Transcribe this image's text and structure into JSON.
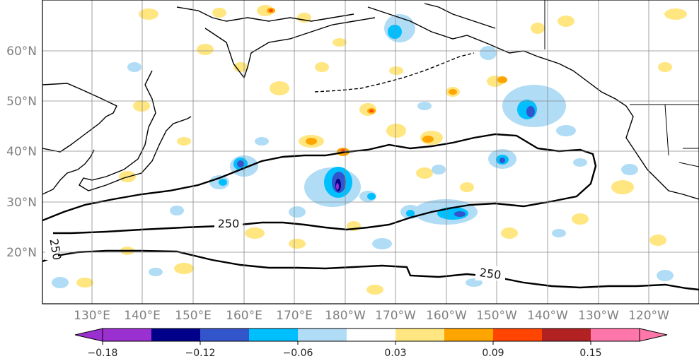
{
  "map": {
    "lon_ticks": [
      "130°E",
      "140°E",
      "150°E",
      "160°E",
      "170°E",
      "180°W",
      "170°W",
      "160°W",
      "150°W",
      "140°W",
      "130°W",
      "120°W"
    ],
    "lat_ticks": [
      "60°N",
      "50°N",
      "40°N",
      "30°N",
      "20°N"
    ],
    "contour_labels": [
      "250",
      "250",
      "250"
    ]
  },
  "colorbar": {
    "colors": [
      "#9b30d0",
      "#00008b",
      "#3355cc",
      "#00bfff",
      "#b0dcf5",
      "#ffffff",
      "#ffe680",
      "#ffa500",
      "#ff4500",
      "#b22222",
      "#ff77aa"
    ],
    "tick_labels": [
      "−0.18",
      "−0.12",
      "−0.06",
      "0.03",
      "0.09",
      "0.15"
    ]
  }
}
